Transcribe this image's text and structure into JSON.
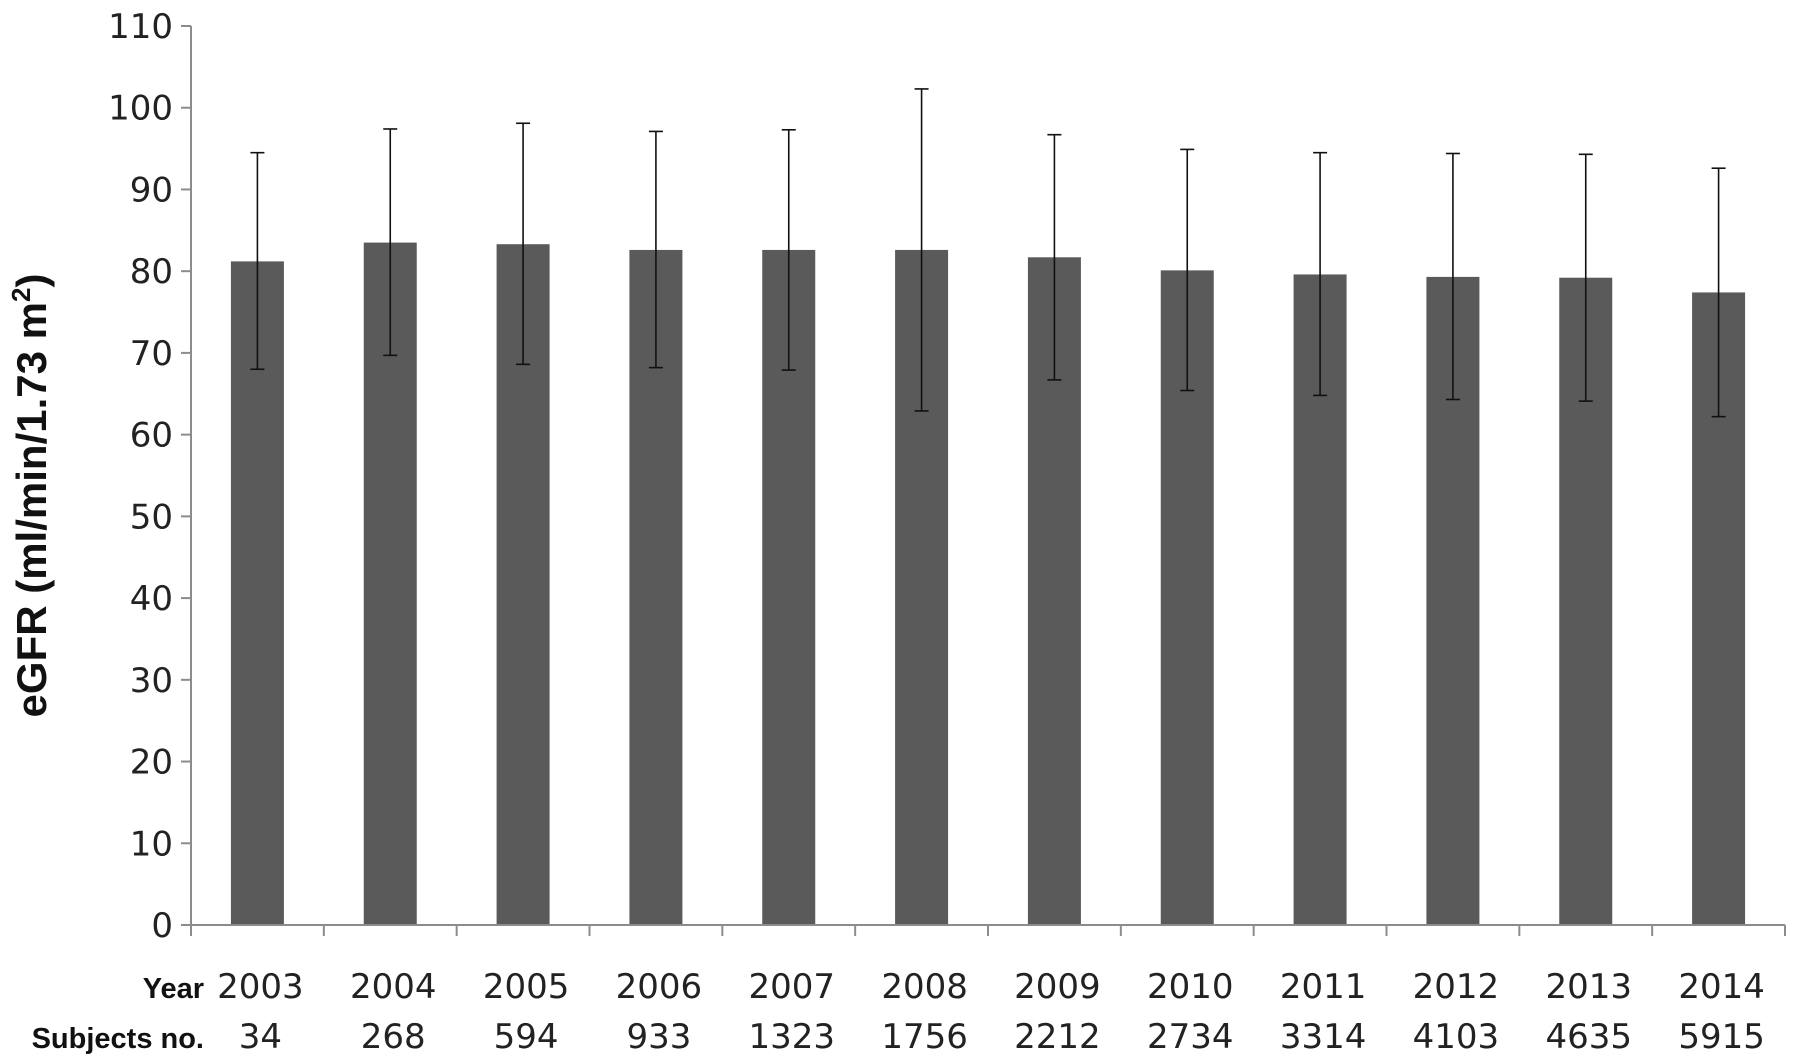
{
  "chart_data": {
    "type": "bar",
    "ylabel": "eGFR (ml/min/1.73 m²)",
    "ylabel_parts": {
      "main": "eGFR (ml/min/1.73 m",
      "sup": "2",
      "close": ")"
    },
    "row_labels": {
      "year": "Year",
      "subjects": "Subjects no."
    },
    "categories": [
      "2003",
      "2004",
      "2005",
      "2006",
      "2007",
      "2008",
      "2009",
      "2010",
      "2011",
      "2012",
      "2013",
      "2014"
    ],
    "subjects": [
      "34",
      "268",
      "594",
      "933",
      "1323",
      "1756",
      "2212",
      "2734",
      "3314",
      "4103",
      "4635",
      "5915"
    ],
    "values": [
      81.2,
      83.5,
      83.3,
      82.6,
      82.6,
      82.6,
      81.7,
      80.1,
      79.6,
      79.3,
      79.2,
      77.4
    ],
    "error_upper": [
      94.5,
      97.4,
      98.1,
      97.1,
      97.3,
      102.3,
      96.7,
      94.9,
      94.5,
      94.4,
      94.3,
      92.6
    ],
    "error_lower": [
      68.0,
      69.7,
      68.6,
      68.2,
      67.9,
      62.9,
      66.7,
      65.4,
      64.8,
      64.3,
      64.1,
      62.2
    ],
    "ylim": [
      0,
      110
    ],
    "yticks": [
      0,
      10,
      20,
      30,
      40,
      50,
      60,
      70,
      80,
      90,
      100,
      110
    ],
    "grid": false,
    "colors": {
      "bar": "#5a5a5a",
      "axis": "#8c8c8c",
      "error_bar": "#111111"
    }
  }
}
